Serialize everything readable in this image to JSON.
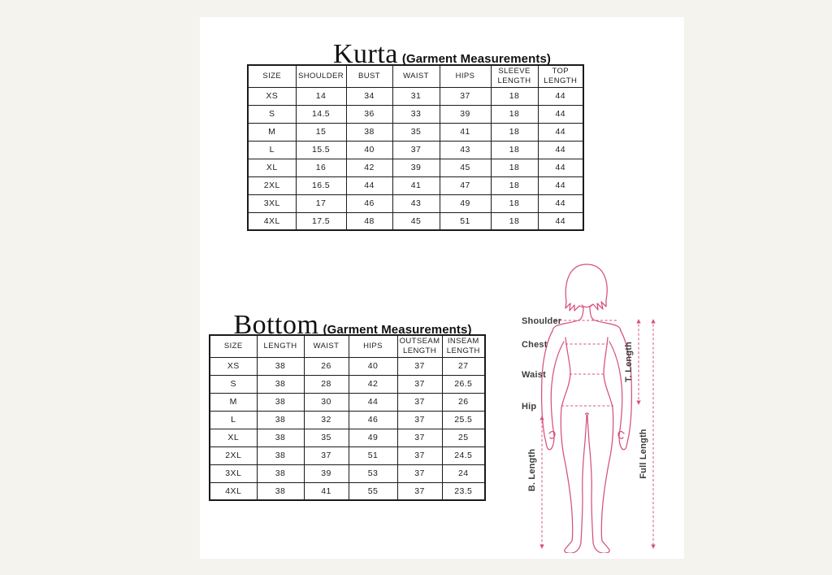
{
  "page": {
    "background": "#f5f3ee",
    "panel_background": "#ffffff",
    "accent_color": "#d6517c",
    "label_color": "#3d3d3d"
  },
  "kurta": {
    "title": "Kurta",
    "subtitle": "(Garment Measurements)",
    "columns": [
      "SIZE",
      "SHOULDER",
      "BUST",
      "WAIST",
      "HIPS",
      "SLEEVE\nLENGTH",
      "TOP\nLENGTH"
    ],
    "rows": [
      [
        "XS",
        "14",
        "34",
        "31",
        "37",
        "18",
        "44"
      ],
      [
        "S",
        "14.5",
        "36",
        "33",
        "39",
        "18",
        "44"
      ],
      [
        "M",
        "15",
        "38",
        "35",
        "41",
        "18",
        "44"
      ],
      [
        "L",
        "15.5",
        "40",
        "37",
        "43",
        "18",
        "44"
      ],
      [
        "XL",
        "16",
        "42",
        "39",
        "45",
        "18",
        "44"
      ],
      [
        "2XL",
        "16.5",
        "44",
        "41",
        "47",
        "18",
        "44"
      ],
      [
        "3XL",
        "17",
        "46",
        "43",
        "49",
        "18",
        "44"
      ],
      [
        "4XL",
        "17.5",
        "48",
        "45",
        "51",
        "18",
        "44"
      ]
    ]
  },
  "bottom": {
    "title": "Bottom",
    "subtitle": "(Garment Measurements)",
    "columns": [
      "SIZE",
      "LENGTH",
      "WAIST",
      "HIPS",
      "OUTSEAM\nLENGTH",
      "INSEAM\nLENGTH"
    ],
    "rows": [
      [
        "XS",
        "38",
        "26",
        "40",
        "37",
        "27"
      ],
      [
        "S",
        "38",
        "28",
        "42",
        "37",
        "26.5"
      ],
      [
        "M",
        "38",
        "30",
        "44",
        "37",
        "26"
      ],
      [
        "L",
        "38",
        "32",
        "46",
        "37",
        "25.5"
      ],
      [
        "XL",
        "38",
        "35",
        "49",
        "37",
        "25"
      ],
      [
        "2XL",
        "38",
        "37",
        "51",
        "37",
        "24.5"
      ],
      [
        "3XL",
        "38",
        "39",
        "53",
        "37",
        "24"
      ],
      [
        "4XL",
        "38",
        "41",
        "55",
        "37",
        "23.5"
      ]
    ]
  },
  "figure": {
    "measure_labels": {
      "shoulder": "Shoulder",
      "chest": "Chest",
      "waist": "Waist",
      "hip": "Hip"
    },
    "length_labels": {
      "top": "T. Length",
      "full": "Full Length",
      "bottom": "B. Length"
    }
  }
}
